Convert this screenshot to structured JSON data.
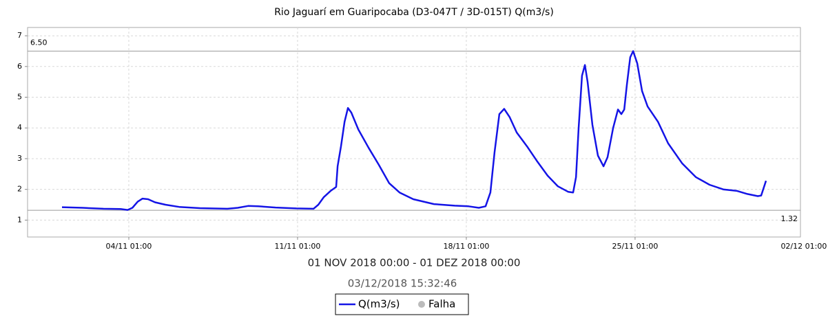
{
  "chart_data": {
    "type": "line",
    "title": "Rio Jaguarí em Guaripocaba (D3-047T / 3D-015T) Q(m3/s)",
    "xlabel": "01 NOV 2018 00:00 - 01 DEZ 2018 00:00",
    "subtitle": "03/12/2018 15:32:46",
    "x": [
      0.27,
      1.13,
      1.99,
      2.7,
      2.99,
      3.19,
      3.41,
      3.61,
      3.84,
      4.13,
      4.56,
      5.13,
      5.99,
      7.13,
      7.56,
      7.99,
      8.41,
      9.13,
      9.99,
      10.7,
      10.9,
      11.13,
      11.41,
      11.64,
      11.7,
      11.84,
      11.99,
      12.13,
      12.27,
      12.56,
      12.99,
      13.41,
      13.84,
      14.27,
      14.84,
      15.7,
      16.56,
      17.13,
      17.56,
      17.84,
      18.04,
      18.21,
      18.41,
      18.61,
      18.84,
      19.13,
      19.56,
      19.99,
      20.41,
      20.84,
      21.27,
      21.47,
      21.59,
      21.7,
      21.84,
      21.96,
      22.07,
      22.27,
      22.5,
      22.73,
      22.9,
      23.13,
      23.33,
      23.47,
      23.59,
      23.7,
      23.84,
      23.96,
      24.13,
      24.33,
      24.56,
      24.99,
      25.41,
      25.99,
      26.56,
      27.13,
      27.7,
      28.27,
      28.7,
      29.13,
      29.27,
      29.47
    ],
    "series": [
      {
        "name": "Q(m3/s)",
        "color": "#1414e6",
        "values": [
          1.42,
          1.4,
          1.37,
          1.36,
          1.33,
          1.4,
          1.6,
          1.7,
          1.68,
          1.58,
          1.5,
          1.43,
          1.39,
          1.37,
          1.4,
          1.46,
          1.45,
          1.41,
          1.38,
          1.37,
          1.5,
          1.75,
          1.95,
          2.08,
          2.75,
          3.4,
          4.2,
          4.65,
          4.5,
          3.95,
          3.35,
          2.8,
          2.2,
          1.9,
          1.68,
          1.52,
          1.47,
          1.45,
          1.4,
          1.45,
          1.9,
          3.2,
          4.45,
          4.62,
          4.35,
          3.85,
          3.4,
          2.9,
          2.45,
          2.1,
          1.92,
          1.9,
          2.4,
          4.0,
          5.7,
          6.05,
          5.5,
          4.1,
          3.1,
          2.75,
          3.05,
          4.0,
          4.6,
          4.45,
          4.6,
          5.4,
          6.3,
          6.5,
          6.1,
          5.2,
          4.7,
          4.2,
          3.5,
          2.85,
          2.4,
          2.15,
          2.0,
          1.95,
          1.85,
          1.78,
          1.8,
          2.28
        ]
      }
    ],
    "fault_legend": {
      "name": "Falha",
      "color": "#bbbbbb"
    },
    "max_line": {
      "value": 6.5,
      "label": "6.50"
    },
    "min_line": {
      "value": 1.32,
      "label": "1.32"
    },
    "xlim": [
      -1.16,
      30.9
    ],
    "xticks": [
      {
        "value": 3.04,
        "label": "04/11 01:00"
      },
      {
        "value": 10.04,
        "label": "11/11 01:00"
      },
      {
        "value": 17.04,
        "label": "18/11 01:00"
      },
      {
        "value": 24.04,
        "label": "25/11 01:00"
      },
      {
        "value": 31.04,
        "label": "02/12 01:00"
      }
    ],
    "ylim": [
      0.45,
      7.27
    ],
    "yticks": [
      1,
      2,
      3,
      4,
      5,
      6,
      7
    ],
    "grid": true
  }
}
